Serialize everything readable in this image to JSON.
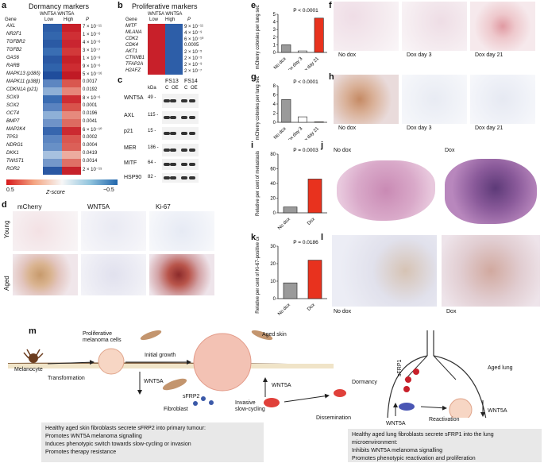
{
  "panel_letters": [
    "a",
    "b",
    "c",
    "d",
    "e",
    "f",
    "g",
    "h",
    "i",
    "j",
    "k",
    "l",
    "m"
  ],
  "a": {
    "title": "Dormancy markers",
    "col_header": "WNT5A WNT5A",
    "gene_header": "Gene",
    "low": "Low",
    "high": "High",
    "p_header": "P",
    "rows": [
      {
        "gene": "AXL",
        "p": "7 × 10⁻¹¹"
      },
      {
        "gene": "NR2F1",
        "p": "1 × 10⁻⁶"
      },
      {
        "gene": "TGFBR2",
        "p": "4 × 10⁻⁶"
      },
      {
        "gene": "TGFB2",
        "p": "3 × 10⁻⁷"
      },
      {
        "gene": "GAS6",
        "p": "1 × 10⁻⁸"
      },
      {
        "gene": "RARB",
        "p": "9 × 10⁻⁶"
      },
      {
        "gene": "MAPK13 (p38δ)",
        "p": "5 × 10⁻¹⁶"
      },
      {
        "gene": "MAPK11 (p38β)",
        "p": "0.0017"
      },
      {
        "gene": "CDKN1A (p21)",
        "p": "0.0192"
      },
      {
        "gene": "SOX9",
        "p": "8 × 10⁻⁶"
      },
      {
        "gene": "SOX2",
        "p": "0.0001"
      },
      {
        "gene": "OCT4",
        "p": "0.0196"
      },
      {
        "gene": "BMP7",
        "p": "0.0041"
      },
      {
        "gene": "MAP2K4",
        "p": "6 × 10⁻¹⁰"
      },
      {
        "gene": "TP53",
        "p": "0.0002"
      },
      {
        "gene": "NDRG1",
        "p": "0.0004"
      },
      {
        "gene": "DKK1",
        "p": "0.0419"
      },
      {
        "gene": "TWIST1",
        "p": "0.0014"
      },
      {
        "gene": "ROR2",
        "p": "2 × 10⁻¹⁵"
      }
    ],
    "zscore_label": "Z-score",
    "zscore_min": "0.5",
    "zscore_max": "−0.5"
  },
  "b": {
    "title": "Proliferative markers",
    "col_header": "WNT5A WNT5A",
    "gene_header": "Gene",
    "low": "Low",
    "high": "High",
    "p_header": "P",
    "rows": [
      {
        "gene": "MITF",
        "p": "9 × 10⁻¹¹"
      },
      {
        "gene": "MLANA",
        "p": "4 × 10⁻⁹"
      },
      {
        "gene": "CDK2",
        "p": "6 × 10⁻¹⁰"
      },
      {
        "gene": "CDK4",
        "p": "0.0005"
      },
      {
        "gene": "AKT1",
        "p": "2 × 10⁻⁵"
      },
      {
        "gene": "CTNNB1",
        "p": "2 × 10⁻⁵"
      },
      {
        "gene": "TFAP2A",
        "p": "2 × 10⁻⁹"
      },
      {
        "gene": "H2AFZ",
        "p": "2 × 10⁻⁷"
      }
    ]
  },
  "c": {
    "kda": "kDa",
    "lines": [
      "FS13",
      "FS14"
    ],
    "lanes": [
      "C",
      "OE",
      "C",
      "OE"
    ],
    "rows": [
      {
        "label": "WNT5A",
        "mw": "49 -"
      },
      {
        "label": "AXL",
        "mw": "115 -"
      },
      {
        "label": "p21",
        "mw": "15 -"
      },
      {
        "label": "MER",
        "mw": "186 -"
      },
      {
        "label": "MITF",
        "mw": "64 -"
      },
      {
        "label": "HSP90",
        "mw": "82 -"
      }
    ]
  },
  "d": {
    "cols": [
      "mCherry",
      "WNT5A",
      "Ki-67"
    ],
    "rows": [
      "Young",
      "Aged"
    ]
  },
  "e": {
    "type": "bar",
    "ylabel": "mCherry colonies per lung section",
    "p": "P < 0.0001",
    "categories": [
      "No dox",
      "Dox day 3",
      "Dox day 21"
    ],
    "values": [
      1,
      0.2,
      4.5
    ],
    "ylim": [
      0,
      5
    ],
    "ticks": [
      "0",
      "1",
      "2",
      "3",
      "4",
      "5"
    ],
    "colors": [
      "#9a9a9a",
      "#ffffff",
      "#e8321e"
    ]
  },
  "f": {
    "captions": [
      "No dox",
      "Dox day 3",
      "Dox day 21"
    ]
  },
  "g": {
    "type": "bar",
    "ylabel": "mCherry colonies per lung section",
    "p": "P < 0.0001",
    "categories": [
      "No dox",
      "Dox day 3",
      "Dox day 21"
    ],
    "values": [
      5,
      1.2,
      0.1
    ],
    "ylim": [
      0,
      8
    ],
    "ticks": [
      "0",
      "2",
      "4",
      "6",
      "8"
    ],
    "colors": [
      "#9a9a9a",
      "#ffffff",
      "#e8321e"
    ]
  },
  "h": {
    "captions": [
      "No dox",
      "Dox day 3",
      "Dox day 21"
    ]
  },
  "i": {
    "type": "bar",
    "ylabel": "Relative per cent of metastasis",
    "p": "P = 0.0003",
    "categories": [
      "No dox",
      "Dox"
    ],
    "values": [
      8,
      46
    ],
    "ylim": [
      0,
      80
    ],
    "ticks": [
      "0",
      "20",
      "40",
      "60",
      "80"
    ],
    "colors": [
      "#9a9a9a",
      "#e8321e"
    ]
  },
  "j": {
    "captions": [
      "No dox",
      "Dox"
    ]
  },
  "k": {
    "type": "bar",
    "ylabel": "Relative per cent of Ki-67-positive cells",
    "p": "P = 0.0186",
    "categories": [
      "No dox",
      "Dox"
    ],
    "values": [
      9,
      22
    ],
    "ylim": [
      0,
      30
    ],
    "ticks": [
      "0",
      "10",
      "20",
      "30"
    ],
    "colors": [
      "#9a9a9a",
      "#e8321e"
    ]
  },
  "l": {
    "captions": [
      "No dox",
      "Dox"
    ]
  },
  "m": {
    "labels": {
      "proliferative": "Proliferative\nmelanoma cells",
      "initial_growth": "Initial growth",
      "aged_skin": "Aged skin",
      "melanocyte": "Melanocyte",
      "transformation": "Transformation",
      "wnt5a_down": "WNT5A",
      "wnt5a_up": "WNT5A",
      "sfrp2": "sFRP2",
      "fibroblast": "Fibroblast",
      "invasive": "Invasive\nslow-cycling",
      "dissemination": "Dissemination",
      "dormancy": "Dormancy",
      "sfrp1": "sFRP1",
      "aged_lung": "Aged lung",
      "wnt5a_lung": "WNT5A",
      "wnt5a_lung2": "WNT5A",
      "reactivation": "Reactivation"
    },
    "box_left": [
      "Healthy aged skin fibroblasts secrete sFRP2 into primary tumour:",
      "Promotes WNT5A melanoma signalling",
      "Induces phenotypic switch towards slow-cycling or invasion",
      "Promotes therapy resistance"
    ],
    "box_right": [
      "Healthy aged lung fibroblasts secrete sFRP1 into the lung microenvironment:",
      "Inhibits WNT5A melanoma signalling",
      "Promotes phenotypic reactivation and proliferation"
    ]
  }
}
